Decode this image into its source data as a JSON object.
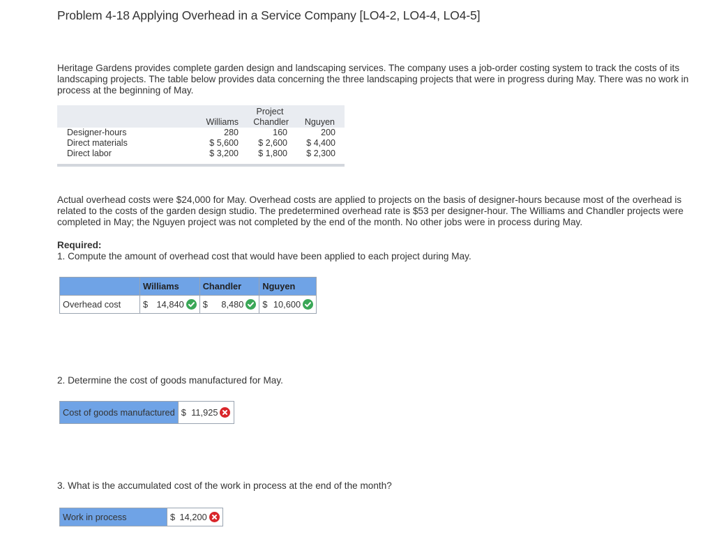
{
  "title": "Problem 4-18 Applying Overhead in a Service Company [LO4-2, LO4-4, LO4-5]",
  "intro": "Heritage Gardens provides complete garden design and landscaping services. The company uses a job-order costing system to track the costs of its landscaping projects. The table below provides data concerning the three landscaping projects that were in progress during May. There was no work in process at the beginning of May.",
  "data_table": {
    "group_header": "Project",
    "columns": [
      "Williams",
      "Chandler",
      "Nguyen"
    ],
    "rows": [
      {
        "label": "Designer-hours",
        "values": [
          "280",
          "160",
          "200"
        ]
      },
      {
        "label": "Direct materials",
        "values": [
          "$ 5,600",
          "$ 2,600",
          "$ 4,400"
        ]
      },
      {
        "label": "Direct labor",
        "values": [
          "$ 3,200",
          "$ 1,800",
          "$ 2,300"
        ]
      }
    ]
  },
  "overhead_text": "Actual overhead costs were $24,000 for May. Overhead costs are applied to projects on the basis of designer-hours because most of the overhead is related to the costs of the garden design studio. The predetermined overhead rate is $53 per designer-hour. The Williams and Chandler projects were completed in May; the Nguyen project was not completed by the end of the month. No other jobs were in process during May.",
  "required_label": "Required:",
  "q1": "1. Compute the amount of overhead cost that would have been applied to each project during May.",
  "answer1": {
    "headers": [
      "Williams",
      "Chandler",
      "Nguyen"
    ],
    "row_label": "Overhead cost",
    "currency": [
      "$",
      "$",
      "$"
    ],
    "values": [
      "14,840",
      "8,480",
      "10,600"
    ],
    "status": [
      "correct",
      "correct",
      "correct"
    ]
  },
  "q2": "2. Determine the cost of goods manufactured for May.",
  "answer2": {
    "label": "Cost of goods manufactured",
    "currency": "$",
    "value": "11,925",
    "status": "incorrect"
  },
  "q3": "3. What is the accumulated cost of the work in process at the end of the month?",
  "answer3": {
    "label": "Work in process",
    "currency": "$",
    "value": "14,200",
    "status": "incorrect"
  },
  "colors": {
    "header_blue": "#6fa3e6",
    "correct_green": "#3aa757",
    "incorrect_red": "#d9262b",
    "table_shade": "#e9ecf1"
  },
  "icons": {
    "correct": "check-circle-icon",
    "incorrect": "x-circle-icon"
  }
}
